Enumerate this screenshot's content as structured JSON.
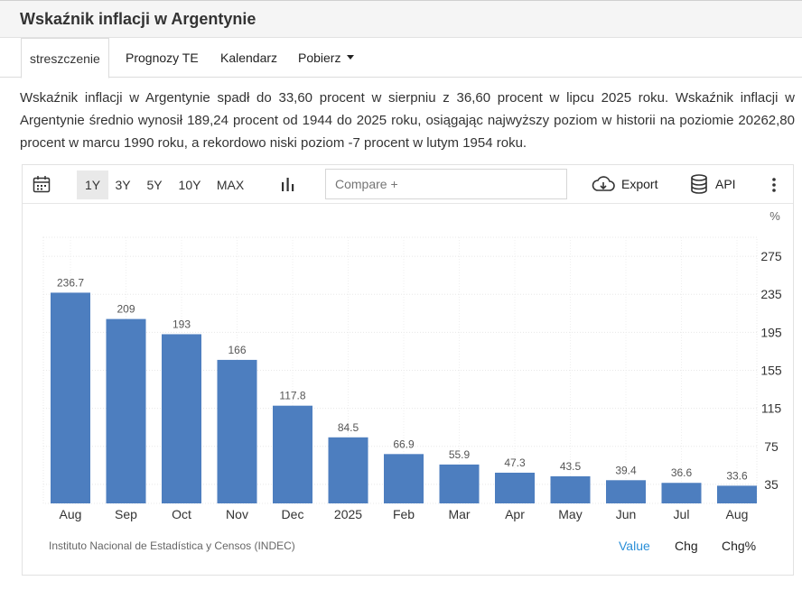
{
  "page": {
    "title": "Wskaźnik inflacji w Argentynie"
  },
  "tabs": [
    {
      "label": "streszczenie"
    },
    {
      "label": "Prognozy TE"
    },
    {
      "label": "Kalendarz"
    },
    {
      "label": "Pobierz"
    }
  ],
  "summary": "Wskaźnik inflacji w Argentynie spadł do 33,60 procent w sierpniu z 36,60 procent w lipcu 2025 roku. Wskaźnik inflacji w Argentynie średnio wynosił 189,24 procent od 1944 do 2025 roku, osiągając najwyższy poziom w historii na poziomie 20262,80 procent w marcu 1990 roku, a rekordowo niski poziom -7 procent w lutym 1954 roku.",
  "toolbar": {
    "calendar_icon": "calendar-icon",
    "ranges": [
      "1Y",
      "3Y",
      "5Y",
      "10Y",
      "MAX"
    ],
    "active_range": "1Y",
    "chart_type_icon": "bar-chart-icon",
    "compare_placeholder": "Compare +",
    "export_label": "Export",
    "export_icon": "cloud-download-icon",
    "api_label": "API",
    "api_icon": "database-icon",
    "more_icon": "vertical-ellipsis-icon"
  },
  "chart_data": {
    "type": "bar",
    "categories": [
      "Aug",
      "Sep",
      "Oct",
      "Nov",
      "Dec",
      "2025",
      "Feb",
      "Mar",
      "Apr",
      "May",
      "Jun",
      "Jul",
      "Aug"
    ],
    "values": [
      236.7,
      209,
      193,
      166,
      117.8,
      84.5,
      66.9,
      55.9,
      47.3,
      43.5,
      39.4,
      36.6,
      33.6
    ],
    "value_labels": [
      "236.7",
      "209",
      "193",
      "166",
      "117.8",
      "84.5",
      "66.9",
      "55.9",
      "47.3",
      "43.5",
      "39.4",
      "36.6",
      "33.6"
    ],
    "unit": "%",
    "ylim": [
      15,
      295
    ],
    "yticks": [
      35,
      75,
      115,
      155,
      195,
      235,
      275
    ],
    "grid": true,
    "color": "#4d7ebf"
  },
  "footer": {
    "source": "Instituto Nacional de Estadística y Censos (INDEC)",
    "views": [
      "Value",
      "Chg",
      "Chg%"
    ],
    "active_view": "Value"
  }
}
